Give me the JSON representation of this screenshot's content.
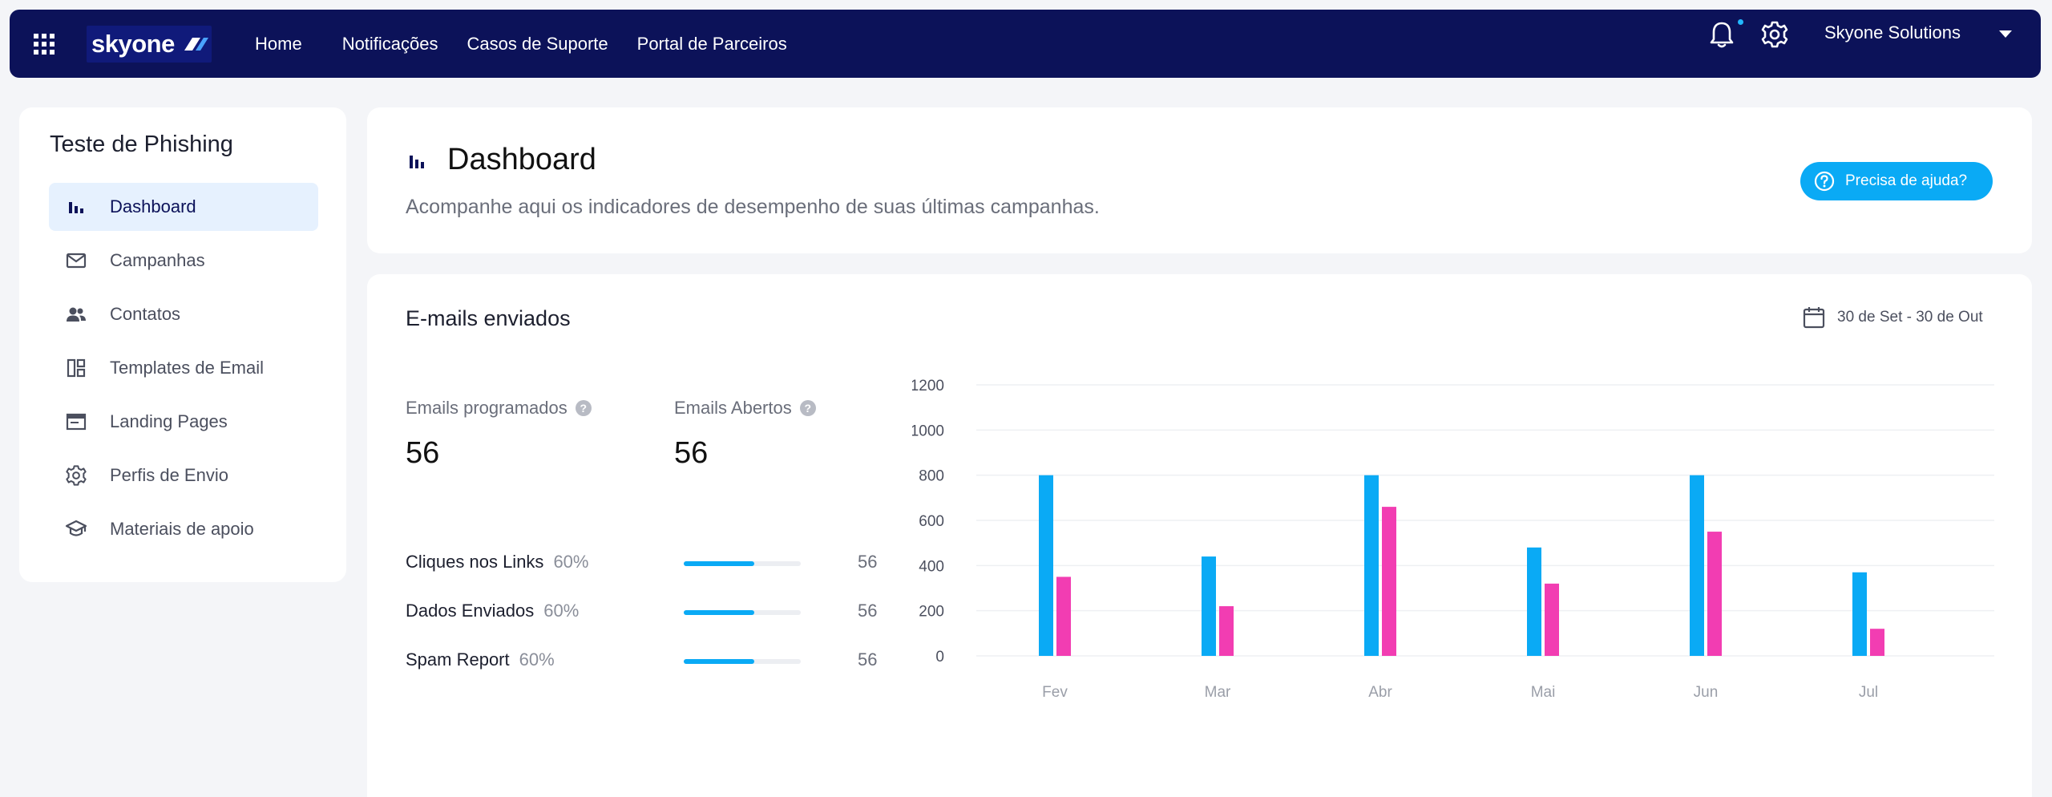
{
  "topbar": {
    "logo_text": "skyone",
    "nav": [
      "Home",
      "Notificações",
      "Casos de Suporte",
      "Portal de Parceiros"
    ],
    "user": "Skyone Solutions",
    "icons": [
      "apps-grid-icon",
      "bell-icon",
      "gear-icon",
      "chevron-down-icon"
    ]
  },
  "sidebar": {
    "title": "Teste de Phishing",
    "items": [
      {
        "label": "Dashboard",
        "icon": "bar-chart-icon",
        "active": true
      },
      {
        "label": "Campanhas",
        "icon": "mail-icon"
      },
      {
        "label": "Contatos",
        "icon": "people-icon"
      },
      {
        "label": "Templates de Email",
        "icon": "layout-icon"
      },
      {
        "label": "Landing Pages",
        "icon": "browser-window-icon"
      },
      {
        "label": "Perfis de Envio",
        "icon": "settings-icon"
      },
      {
        "label": "Materiais de apoio",
        "icon": "graduation-cap-icon"
      }
    ]
  },
  "header": {
    "title": "Dashboard",
    "subtitle": "Acompanhe aqui os indicadores de desempenho de suas últimas campanhas.",
    "help_label": "Precisa de ajuda?"
  },
  "emails": {
    "title": "E-mails enviados",
    "date_range": "30 de Set - 30 de Out",
    "stats": [
      {
        "label": "Emails programados",
        "value": "56"
      },
      {
        "label": "Emails Abertos",
        "value": "56"
      }
    ],
    "progress": [
      {
        "label": "Cliques nos Links",
        "percent": "60%",
        "fraction": 0.6,
        "count": "56"
      },
      {
        "label": "Dados Enviados",
        "percent": "60%",
        "fraction": 0.6,
        "count": "56"
      },
      {
        "label": "Spam Report",
        "percent": "60%",
        "fraction": 0.6,
        "count": "56"
      }
    ]
  },
  "colors": {
    "primary": "#0c1259",
    "accent": "#0aaaf5",
    "pink": "#f23db2"
  },
  "chart_data": {
    "type": "bar",
    "categories": [
      "Fev",
      "Mar",
      "Abr",
      "Mai",
      "Jun",
      "Jul"
    ],
    "series": [
      {
        "color": "#0aaaf5",
        "values": [
          800,
          440,
          800,
          480,
          800,
          370
        ]
      },
      {
        "color": "#f23db2",
        "values": [
          350,
          220,
          660,
          320,
          550,
          120
        ]
      }
    ],
    "ylim": [
      0,
      1200
    ],
    "yticks": [
      "0",
      "200",
      "400",
      "600",
      "800",
      "1000",
      "1200"
    ],
    "grid": true
  }
}
